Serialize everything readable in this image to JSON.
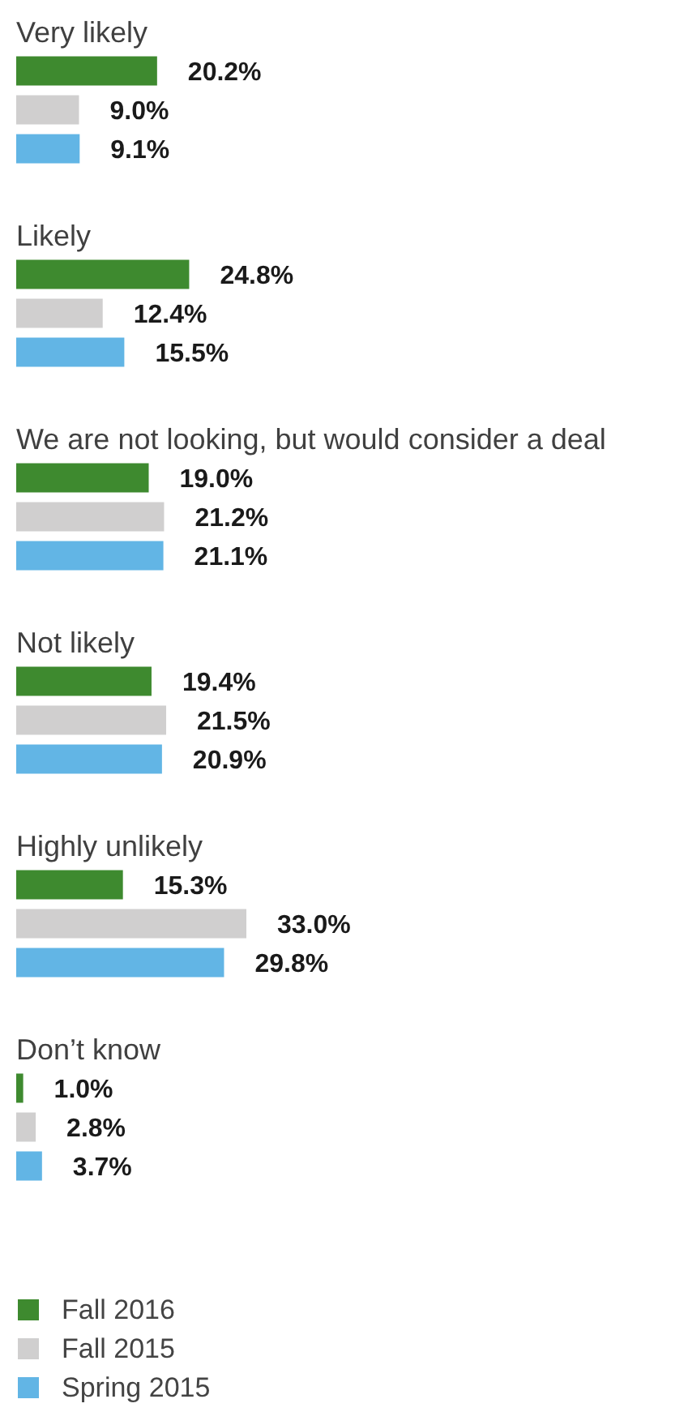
{
  "chart_data": {
    "type": "bar",
    "orientation": "horizontal",
    "tick_labels": "y",
    "legend": "bottom left",
    "categories": [
      "Very likely",
      "Likely",
      "We are not looking, but would consider a deal",
      "Not likely",
      "Highly unlikely",
      "Don’t know"
    ],
    "series": [
      {
        "name": "Fall 2016",
        "color": "#3e8a2f",
        "values": [
          20.2,
          24.8,
          19.0,
          19.4,
          15.3,
          1.0
        ],
        "value_labels": [
          "20.2%",
          "24.8%",
          "19.0%",
          "19.4%",
          "15.3%",
          "1.0%"
        ]
      },
      {
        "name": "Fall 2015",
        "color": "#d0cfcf",
        "values": [
          9.0,
          12.4,
          21.2,
          21.5,
          33.0,
          2.8
        ],
        "value_labels": [
          "9.0%",
          "12.4%",
          "21.2%",
          "21.5%",
          "33.0%",
          "2.8%"
        ]
      },
      {
        "name": "Spring 2015",
        "color": "#62b5e5",
        "values": [
          9.1,
          15.5,
          21.1,
          20.9,
          29.8,
          3.7
        ],
        "value_labels": [
          "9.1%",
          "15.5%",
          "21.1%",
          "20.9%",
          "29.8%",
          "3.7%"
        ]
      }
    ]
  }
}
